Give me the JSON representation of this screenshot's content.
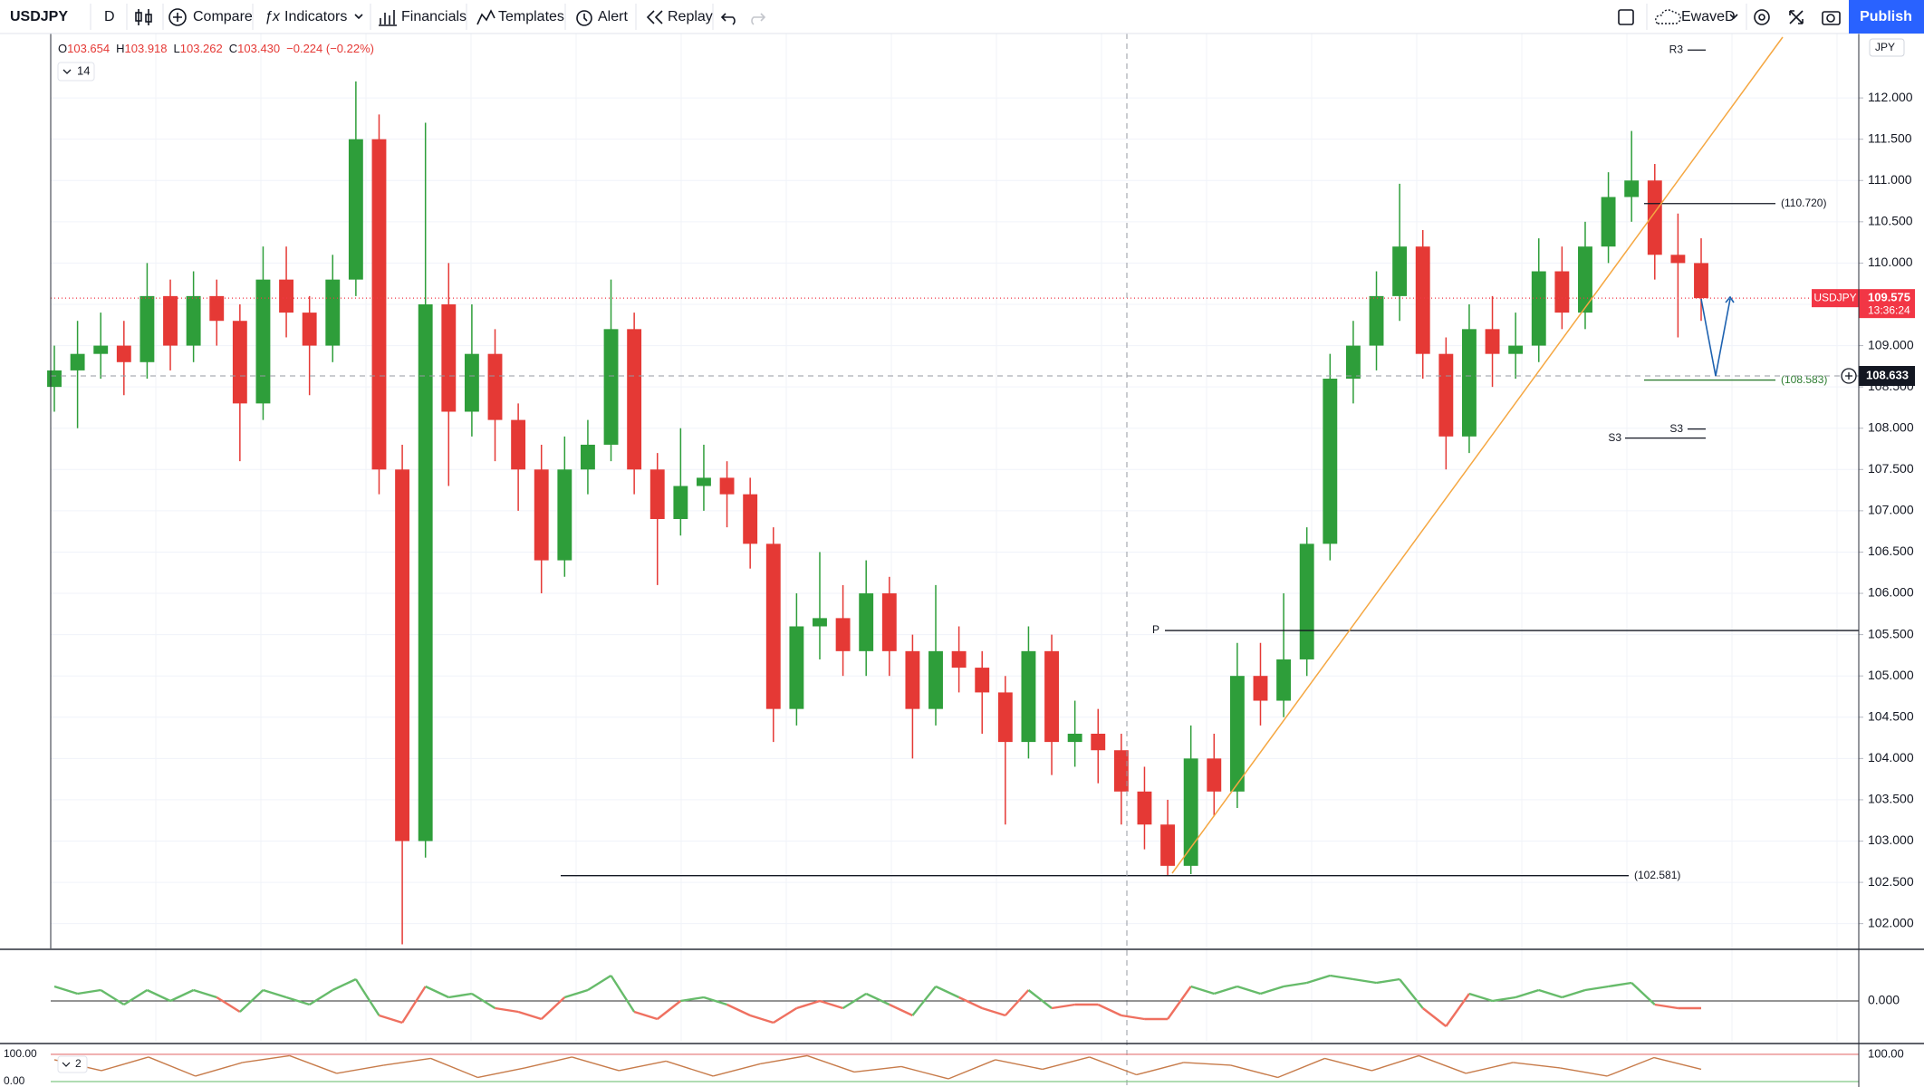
{
  "toolbar": {
    "symbol": "USDJPY",
    "interval": "D",
    "buttons": [
      "Compare",
      "Indicators",
      "Financials",
      "Templates",
      "Alert",
      "Replay"
    ],
    "layout": "EwaveD",
    "publish": "Publish"
  },
  "chart_data": [
    {
      "type": "candlestick",
      "ohlc_legend": [
        "O",
        "103.654",
        "H",
        "103.918",
        "L",
        "103.262",
        "C",
        "103.430",
        "−0.224 (−0.22%)"
      ],
      "indicator_toggle": "14",
      "currency": "JPY",
      "up_color": "#2e9e3a",
      "down_color": "#e53935",
      "open": [
        108.5,
        108.7,
        108.9,
        109.0,
        108.8,
        109.6,
        109.0,
        109.6,
        109.3,
        108.3,
        109.8,
        109.4,
        109.0,
        109.8,
        111.5,
        107.5,
        103.0,
        109.5,
        108.2,
        108.9,
        108.1,
        107.5,
        106.4,
        107.5,
        107.8,
        109.2,
        107.5,
        106.9,
        107.3,
        107.4,
        107.2,
        106.6,
        104.6,
        105.6,
        105.7,
        105.3,
        106.0,
        105.3,
        104.6,
        105.3,
        105.1,
        104.8,
        104.2,
        105.3,
        104.2,
        104.3,
        104.1,
        103.6,
        103.2,
        102.7,
        104.0,
        103.6,
        105.0,
        104.7,
        105.2,
        106.6,
        108.6,
        109.0,
        109.6,
        110.2,
        108.9,
        107.9,
        109.2,
        108.9,
        109.0,
        109.9,
        109.4,
        110.2,
        110.8,
        111.0,
        110.1,
        110.0
      ],
      "high": [
        109.0,
        109.3,
        109.4,
        109.3,
        110.0,
        109.8,
        109.9,
        109.8,
        109.5,
        110.2,
        110.2,
        109.6,
        110.1,
        112.2,
        111.8,
        107.8,
        111.7,
        110.0,
        109.5,
        109.2,
        108.3,
        107.8,
        107.9,
        108.1,
        109.8,
        109.4,
        107.7,
        108.0,
        107.8,
        107.6,
        107.4,
        106.8,
        106.0,
        106.5,
        106.1,
        106.4,
        106.2,
        105.5,
        106.1,
        105.6,
        105.3,
        105.0,
        105.6,
        105.5,
        104.7,
        104.6,
        104.3,
        103.9,
        103.5,
        104.4,
        104.3,
        105.4,
        105.4,
        106.0,
        106.8,
        108.9,
        109.3,
        109.9,
        110.96,
        110.4,
        109.1,
        109.5,
        109.6,
        109.4,
        110.3,
        110.2,
        110.5,
        111.1,
        111.6,
        111.2,
        110.6,
        110.3
      ],
      "low": [
        108.2,
        108.0,
        108.6,
        108.4,
        108.6,
        108.7,
        108.8,
        109.0,
        107.6,
        108.1,
        109.1,
        108.4,
        108.8,
        109.6,
        107.2,
        101.75,
        102.8,
        107.3,
        107.9,
        107.6,
        107.0,
        106.0,
        106.2,
        107.2,
        107.6,
        107.2,
        106.1,
        106.7,
        107.0,
        106.8,
        106.3,
        104.2,
        104.4,
        105.2,
        105.0,
        105.0,
        105.0,
        104.0,
        104.4,
        104.8,
        104.3,
        103.2,
        104.0,
        103.8,
        103.9,
        103.7,
        103.2,
        102.9,
        102.58,
        102.6,
        103.3,
        103.4,
        104.4,
        104.5,
        105.0,
        106.4,
        108.3,
        108.7,
        109.3,
        108.6,
        107.5,
        107.7,
        108.5,
        108.6,
        108.8,
        109.2,
        109.2,
        110.0,
        110.5,
        109.8,
        109.1,
        109.3
      ],
      "close": [
        108.7,
        108.9,
        109.0,
        108.8,
        109.6,
        109.0,
        109.6,
        109.3,
        108.3,
        109.8,
        109.4,
        109.0,
        109.8,
        111.5,
        107.5,
        103.0,
        109.5,
        108.2,
        108.9,
        108.1,
        107.5,
        106.4,
        107.5,
        107.8,
        109.2,
        107.5,
        106.9,
        107.3,
        107.4,
        107.2,
        106.6,
        104.6,
        105.6,
        105.7,
        105.3,
        106.0,
        105.3,
        104.6,
        105.3,
        105.1,
        104.8,
        104.2,
        105.3,
        104.2,
        104.3,
        104.1,
        103.6,
        103.2,
        102.7,
        104.0,
        103.6,
        105.0,
        104.7,
        105.2,
        106.6,
        108.6,
        109.0,
        109.6,
        110.2,
        108.9,
        107.9,
        109.2,
        108.9,
        109.0,
        109.9,
        109.4,
        110.2,
        110.8,
        111.0,
        110.1,
        110.0,
        109.575
      ],
      "ylim": [
        101.7,
        112.78
      ],
      "yticks": [
        {
          "value": 102,
          "label": "102.000"
        },
        {
          "value": 102.5,
          "label": "102.500"
        },
        {
          "value": 103,
          "label": "103.000"
        },
        {
          "value": 103.5,
          "label": "103.500"
        },
        {
          "value": 104,
          "label": "104.000"
        },
        {
          "value": 104.5,
          "label": "104.500"
        },
        {
          "value": 105,
          "label": "105.000"
        },
        {
          "value": 105.5,
          "label": "105.500"
        },
        {
          "value": 106,
          "label": "106.000"
        },
        {
          "value": 106.5,
          "label": "106.500"
        },
        {
          "value": 107,
          "label": "107.000"
        },
        {
          "value": 107.5,
          "label": "107.500"
        },
        {
          "value": 108,
          "label": "108.000"
        },
        {
          "value": 108.5,
          "label": "108.500"
        },
        {
          "value": 109,
          "label": "109.000"
        },
        {
          "value": 109.5,
          "label": "109.500"
        },
        {
          "value": 110,
          "label": "110.000"
        },
        {
          "value": 110.5,
          "label": "110.500"
        },
        {
          "value": 111,
          "label": "111.000"
        },
        {
          "value": 111.5,
          "label": "111.500"
        },
        {
          "value": 112,
          "label": "112.000"
        }
      ],
      "grid": true,
      "levels": [
        {
          "label": "R3",
          "value": 112.58,
          "color": "#131722"
        },
        {
          "label": "S3",
          "value": 107.99,
          "color": "#131722"
        },
        {
          "label": "S3",
          "value": 107.88,
          "color": "#131722"
        },
        {
          "label": "P",
          "value": 105.55,
          "color": "#131722"
        },
        {
          "label": "(110.720)",
          "value": 110.72,
          "color": "#131722"
        },
        {
          "label": "(108.583)",
          "value": 108.583,
          "color": "#2e7d32"
        },
        {
          "label": "(102.581)",
          "value": 102.581,
          "color": "#131722"
        }
      ],
      "last_price": {
        "symbol": "USDJPY",
        "value": 109.575,
        "countdown": "13:36:24",
        "color": "#f23645"
      },
      "crosshair_price": 108.633
    },
    {
      "type": "line",
      "values": [
        0.4,
        0.2,
        0.3,
        -0.1,
        0.3,
        0.0,
        0.3,
        0.1,
        -0.3,
        0.3,
        0.1,
        -0.1,
        0.3,
        0.6,
        -0.4,
        -0.6,
        0.4,
        0.1,
        0.2,
        -0.2,
        -0.3,
        -0.5,
        0.1,
        0.3,
        0.7,
        -0.3,
        -0.5,
        0.0,
        0.1,
        -0.1,
        -0.4,
        -0.6,
        -0.2,
        0.0,
        -0.2,
        0.2,
        -0.1,
        -0.4,
        0.4,
        0.1,
        -0.2,
        -0.4,
        0.3,
        -0.2,
        -0.1,
        -0.1,
        -0.4,
        -0.5,
        -0.5,
        0.4,
        0.2,
        0.4,
        0.2,
        0.4,
        0.5,
        0.7,
        0.6,
        0.5,
        0.6,
        -0.2,
        -0.7,
        0.2,
        0.0,
        0.1,
        0.3,
        0.1,
        0.3,
        0.4,
        0.5,
        -0.1,
        -0.2,
        -0.2
      ],
      "up_color": "#66bb6a",
      "down_color": "#ef7060",
      "ylim": [
        -1.125,
        1.375
      ],
      "yticks": [
        {
          "value": 0,
          "label": "0.000"
        }
      ]
    },
    {
      "type": "line",
      "toggle": "2",
      "values": [
        80,
        40,
        90,
        20,
        70,
        95,
        30,
        60,
        85,
        15,
        50,
        90,
        40,
        75,
        20,
        65,
        95,
        35,
        55,
        10,
        80,
        45,
        90,
        25,
        70,
        60,
        15,
        85,
        40,
        95,
        30,
        70,
        50,
        20,
        88,
        45
      ],
      "color": "#c77b4a",
      "ylim": [
        -20,
        133
      ],
      "yticks": [
        {
          "value": 100,
          "label": "100.00"
        },
        {
          "value": 0,
          "label": "0.00"
        }
      ]
    }
  ]
}
